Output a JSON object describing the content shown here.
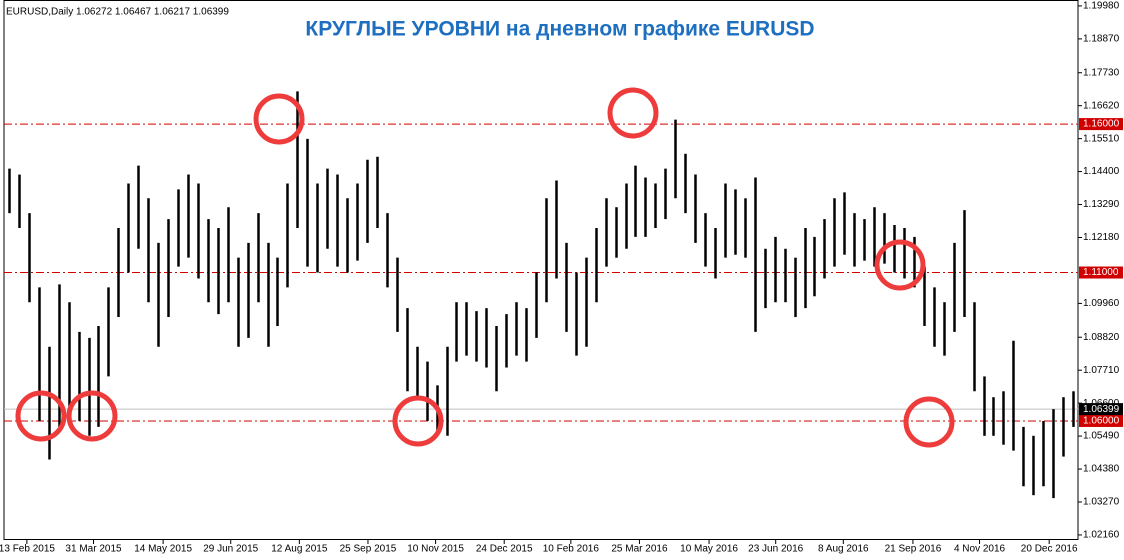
{
  "chart_data": {
    "type": "ohlc",
    "header": "EURUSD,Daily  1.06272 1.06467 1.06217 1.06399",
    "title": "КРУГЛЫЕ УРОВНИ на дневном графике EURUSD",
    "color": "#000000",
    "level_color": "#d00000",
    "ylim": [
      1.0199,
      1.2018
    ],
    "yticks": [
      {
        "value": 1.1998,
        "label": "1.19980"
      },
      {
        "value": 1.1887,
        "label": "1.18870"
      },
      {
        "value": 1.1773,
        "label": "1.17730"
      },
      {
        "value": 1.1662,
        "label": "1.16620"
      },
      {
        "value": 1.1551,
        "label": "1.15510"
      },
      {
        "value": 1.144,
        "label": "1.14400"
      },
      {
        "value": 1.1329,
        "label": "1.13290"
      },
      {
        "value": 1.1218,
        "label": "1.12180"
      },
      {
        "value": 1.0996,
        "label": "1.09960"
      },
      {
        "value": 1.0882,
        "label": "1.08820"
      },
      {
        "value": 1.0771,
        "label": "1.07710"
      },
      {
        "value": 1.066,
        "label": "1.06600"
      },
      {
        "value": 1.0549,
        "label": "1.05490"
      },
      {
        "value": 1.0438,
        "label": "1.04380"
      },
      {
        "value": 1.0327,
        "label": "1.03270"
      },
      {
        "value": 1.0216,
        "label": "1.02160"
      }
    ],
    "xlim": [
      0,
      108
    ],
    "xticks": [
      {
        "value": 2.3,
        "label": "13 Feb 2015"
      },
      {
        "value": 9.0,
        "label": "31 Mar 2015"
      },
      {
        "value": 16.0,
        "label": "14 May 2015"
      },
      {
        "value": 22.8,
        "label": "29 Jun 2015"
      },
      {
        "value": 29.7,
        "label": "12 Aug 2015"
      },
      {
        "value": 36.6,
        "label": "25 Sep 2015"
      },
      {
        "value": 43.4,
        "label": "10 Nov 2015"
      },
      {
        "value": 50.3,
        "label": "24 Dec 2015"
      },
      {
        "value": 57.0,
        "label": "10 Feb 2016"
      },
      {
        "value": 63.9,
        "label": "25 Mar 2016"
      },
      {
        "value": 70.9,
        "label": "10 May 2016"
      },
      {
        "value": 77.6,
        "label": "23 Jun 2016"
      },
      {
        "value": 84.4,
        "label": "8 Aug 2016"
      },
      {
        "value": 91.4,
        "label": "21 Sep 2016"
      },
      {
        "value": 98.1,
        "label": "4 Nov 2016"
      },
      {
        "value": 105.1,
        "label": "20 Dec 2016"
      }
    ],
    "high": [
      1.145,
      1.143,
      1.13,
      1.105,
      1.085,
      1.106,
      1.1,
      1.09,
      1.088,
      1.092,
      1.105,
      1.125,
      1.14,
      1.146,
      1.135,
      1.12,
      1.128,
      1.138,
      1.143,
      1.14,
      1.128,
      1.125,
      1.132,
      1.115,
      1.12,
      1.13,
      1.12,
      1.115,
      1.14,
      1.171,
      1.155,
      1.14,
      1.145,
      1.143,
      1.135,
      1.14,
      1.148,
      1.149,
      1.13,
      1.115,
      1.098,
      1.085,
      1.08,
      1.072,
      1.085,
      1.1,
      1.1,
      1.097,
      1.098,
      1.092,
      1.096,
      1.1,
      1.098,
      1.11,
      1.135,
      1.141,
      1.12,
      1.11,
      1.115,
      1.125,
      1.135,
      1.132,
      1.14,
      1.146,
      1.142,
      1.14,
      1.145,
      1.1615,
      1.15,
      1.143,
      1.13,
      1.125,
      1.14,
      1.138,
      1.135,
      1.142,
      1.118,
      1.122,
      1.118,
      1.115,
      1.125,
      1.122,
      1.128,
      1.135,
      1.137,
      1.13,
      1.128,
      1.132,
      1.13,
      1.126,
      1.125,
      1.122,
      1.112,
      1.105,
      1.1,
      1.12,
      1.131,
      1.1,
      1.075,
      1.068,
      1.07,
      1.087,
      1.058,
      1.055,
      1.06,
      1.064,
      1.068,
      1.07
    ],
    "low": [
      1.13,
      1.125,
      1.1,
      1.06,
      1.047,
      1.058,
      1.065,
      1.06,
      1.055,
      1.058,
      1.075,
      1.095,
      1.11,
      1.118,
      1.1,
      1.085,
      1.095,
      1.112,
      1.115,
      1.108,
      1.1,
      1.096,
      1.1,
      1.085,
      1.088,
      1.1,
      1.085,
      1.092,
      1.105,
      1.125,
      1.112,
      1.11,
      1.118,
      1.112,
      1.11,
      1.114,
      1.12,
      1.125,
      1.105,
      1.09,
      1.07,
      1.068,
      1.06,
      1.056,
      1.055,
      1.08,
      1.082,
      1.08,
      1.078,
      1.07,
      1.078,
      1.082,
      1.08,
      1.088,
      1.1,
      1.108,
      1.09,
      1.082,
      1.085,
      1.1,
      1.112,
      1.115,
      1.118,
      1.122,
      1.122,
      1.125,
      1.128,
      1.135,
      1.13,
      1.12,
      1.112,
      1.108,
      1.115,
      1.116,
      1.115,
      1.09,
      1.098,
      1.1,
      1.1,
      1.095,
      1.098,
      1.102,
      1.108,
      1.112,
      1.116,
      1.112,
      1.114,
      1.112,
      1.113,
      1.11,
      1.108,
      1.105,
      1.092,
      1.085,
      1.082,
      1.09,
      1.095,
      1.07,
      1.055,
      1.055,
      1.052,
      1.05,
      1.038,
      1.035,
      1.038,
      1.034,
      1.048,
      1.058
    ],
    "levels": [
      {
        "value": 1.16,
        "label": "1.16000"
      },
      {
        "value": 1.11,
        "label": "1.11000"
      },
      {
        "value": 1.06,
        "label": "1.06000"
      }
    ],
    "last_price": {
      "value": 1.06399,
      "label": "1.06399"
    }
  }
}
